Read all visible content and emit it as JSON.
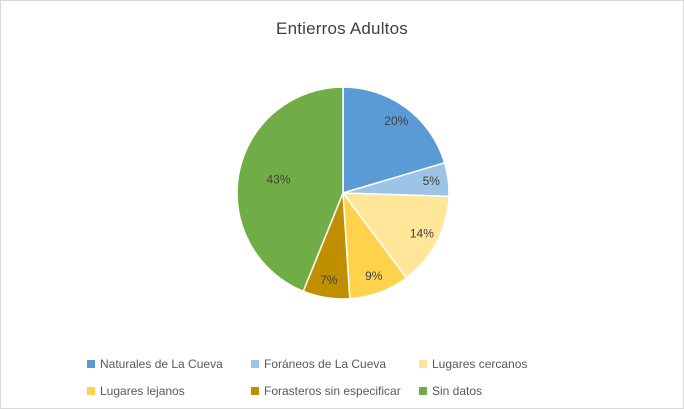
{
  "chart_data": {
    "type": "pie",
    "title": "Entierros Adultos",
    "categories": [
      "Naturales de La Cueva",
      "Foráneos de La Cueva",
      "Lugares cercanos",
      "Lugares lejanos",
      "Forasteros sin especificar",
      "Sin datos"
    ],
    "values": [
      20,
      5,
      14,
      9,
      7,
      43
    ],
    "labels": [
      "20%",
      "5%",
      "14%",
      "9%",
      "7%",
      "43%"
    ],
    "unit": "%",
    "colors": [
      "#5B9BD5",
      "#9DC3E6",
      "#FFE699",
      "#FFD24C",
      "#BF8F00",
      "#70AD47"
    ],
    "start_angle_deg": 0,
    "direction": "clockwise",
    "legend_position": "bottom",
    "legend_rows": 2,
    "legend_columns": 3
  },
  "style": {
    "title_color": "#404040",
    "slice_label_color": "#404040",
    "legend_text_color": "#595959",
    "slice_border_color": "#FFFFFF",
    "frame_border_color": "#D9D9D9",
    "background_color": "#FFFFFF"
  }
}
